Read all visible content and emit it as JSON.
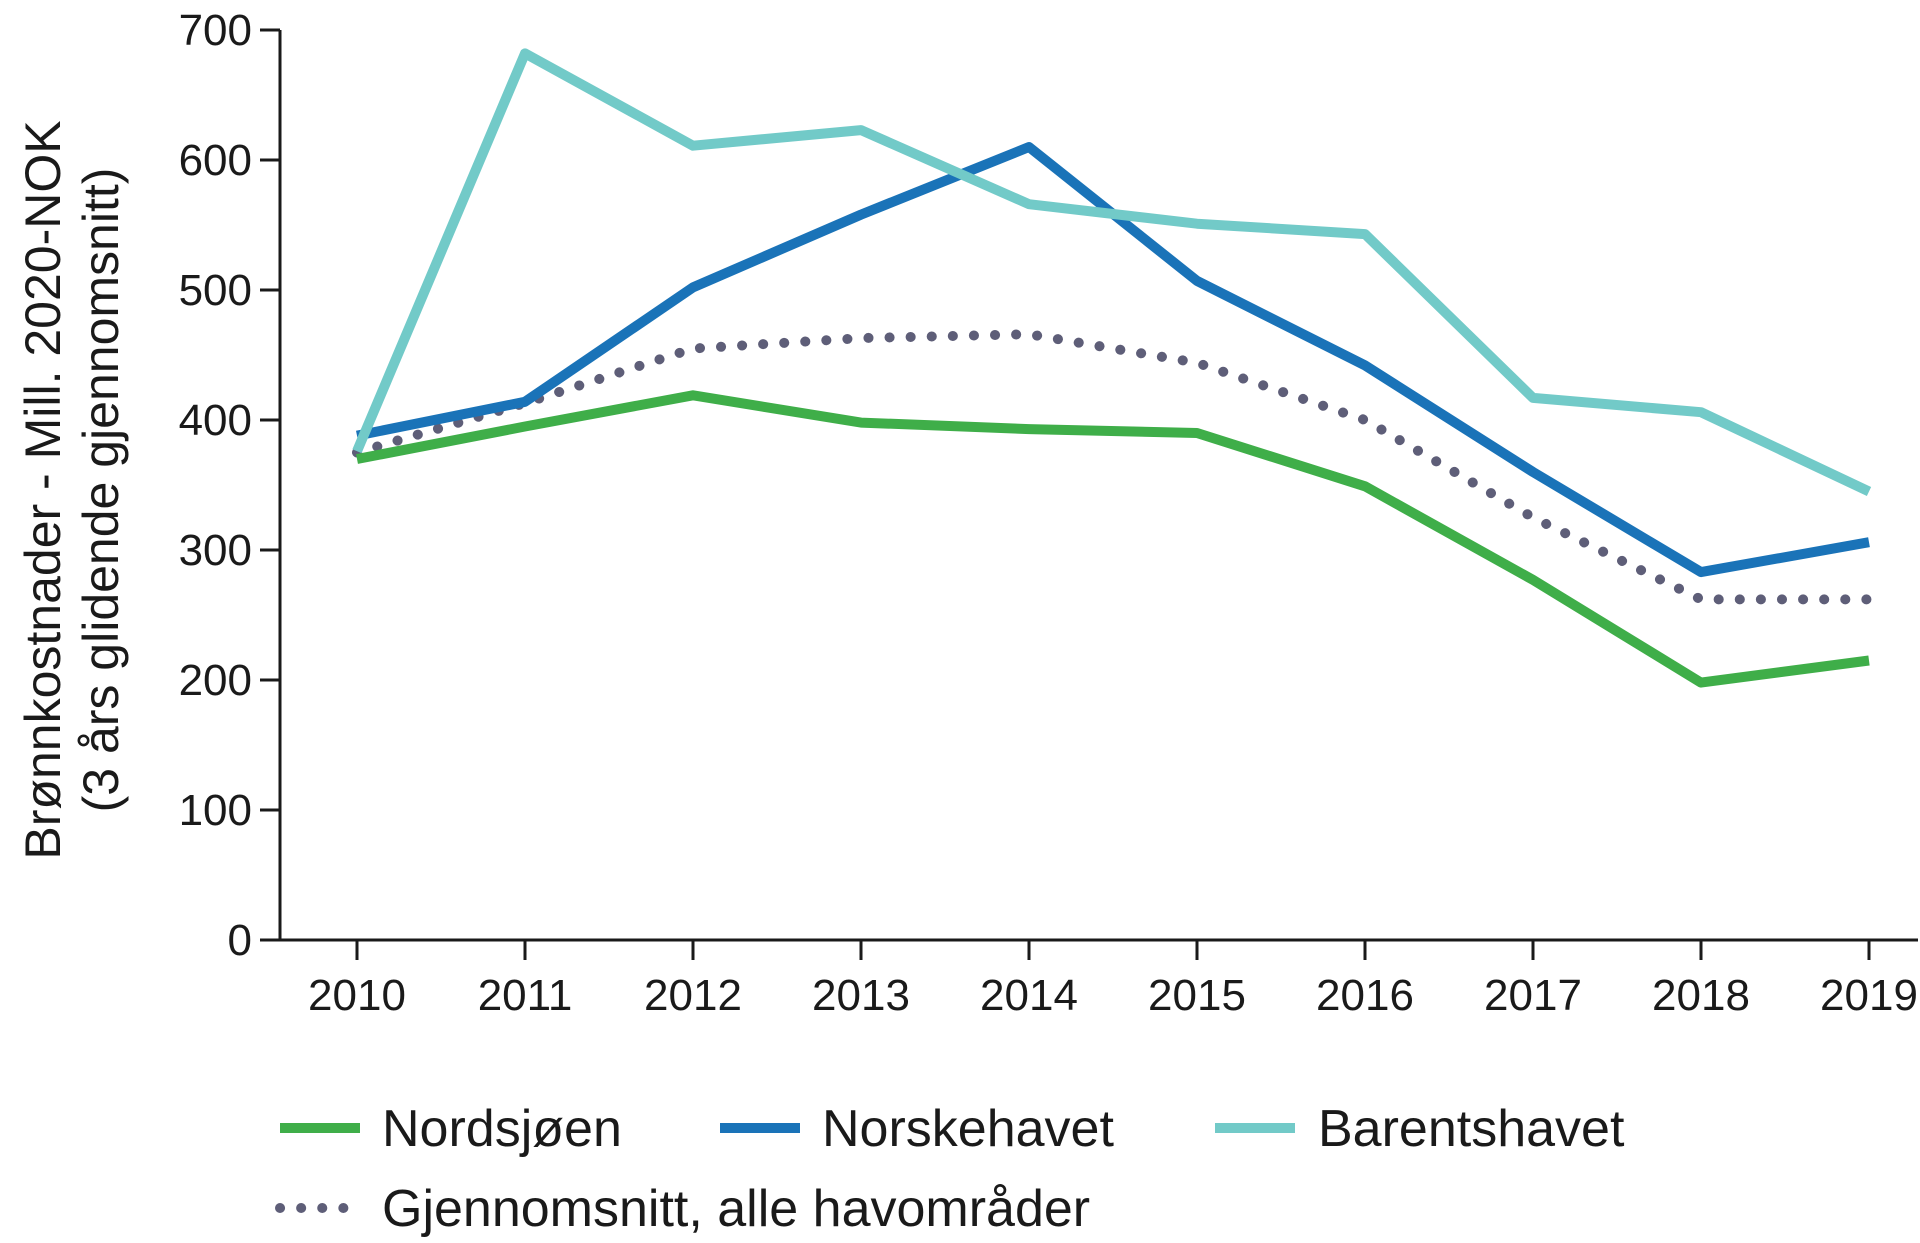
{
  "chart_data": {
    "type": "line",
    "ylabel_line1": "Brønnkostnader - Mill. 2020-NOK",
    "ylabel_line2": "(3 års glidende gjennomsnitt)",
    "xlabel": "",
    "ylim": [
      0,
      700
    ],
    "yticks": [
      "0",
      "100",
      "200",
      "300",
      "400",
      "500",
      "600",
      "700"
    ],
    "x": [
      "2010",
      "2011",
      "2012",
      "2013",
      "2014",
      "2015",
      "2016",
      "2017",
      "2018",
      "2019"
    ],
    "legend_position": "bottom",
    "grid": false,
    "series": [
      {
        "name": "Nordsjøen",
        "color": "#3fae49",
        "style": "solid",
        "values": [
          370,
          395,
          419,
          398,
          393,
          390,
          349,
          277,
          198,
          215
        ]
      },
      {
        "name": "Norskehavet",
        "color": "#1a73b8",
        "style": "solid",
        "values": [
          388,
          414,
          502,
          558,
          610,
          507,
          442,
          360,
          283,
          306
        ]
      },
      {
        "name": "Barentshavet",
        "color": "#72cac8",
        "style": "solid",
        "values": [
          376,
          682,
          611,
          623,
          566,
          551,
          543,
          417,
          406,
          345
        ]
      },
      {
        "name": "Gjennomsnitt, alle havområder",
        "color": "#5e5e78",
        "style": "dotted",
        "values": [
          375,
          413,
          455,
          463,
          466,
          444,
          400,
          325,
          262,
          262
        ]
      }
    ]
  }
}
